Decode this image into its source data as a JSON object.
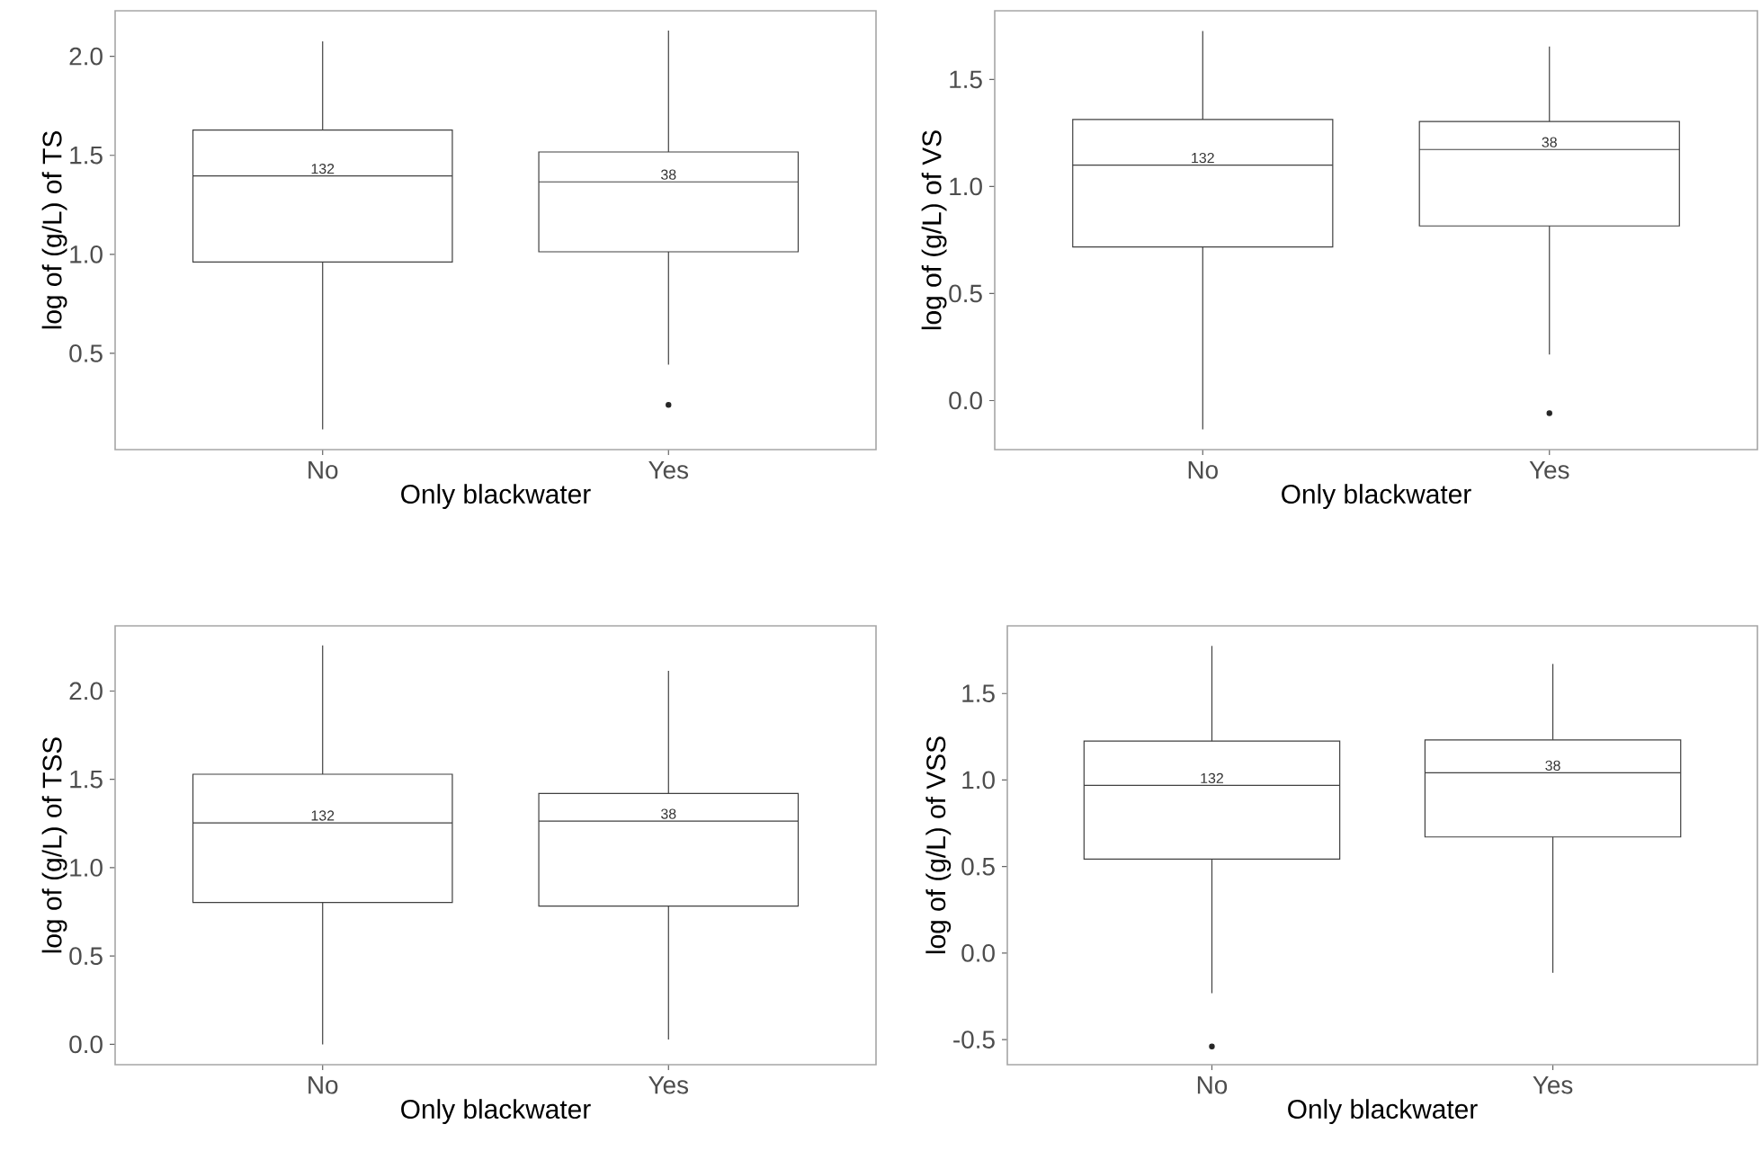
{
  "chart_data": [
    {
      "type": "box",
      "categories": [
        "No",
        "Yes"
      ],
      "xlabel": "Only blackwater",
      "ylabel": "log of (g/L) of TS",
      "ylim": [
        0.014,
        2.23
      ],
      "yticks": [
        0.5,
        {
          "value": 1,
          "label": "1.0"
        },
        1.5,
        {
          "value": 2,
          "label": "2.0"
        }
      ],
      "grid": false,
      "boxes": [
        {
          "low": 0.116,
          "q1": 0.961,
          "median": 1.396,
          "q3": 1.628,
          "high": 2.076
        },
        {
          "low": 0.443,
          "q1": 1.013,
          "median": 1.366,
          "q3": 1.517,
          "high": 2.13,
          "outliers": [
            0.24
          ]
        }
      ],
      "annotations": [
        "132",
        "38"
      ]
    },
    {
      "type": "box",
      "categories": [
        "No",
        "Yes"
      ],
      "xlabel": "Only blackwater",
      "ylabel": "log of (g/L) of VS",
      "ylim": [
        -0.229,
        1.821
      ],
      "yticks": [
        {
          "value": 0,
          "label": "0.0"
        },
        0.5,
        {
          "value": 1,
          "label": "1.0"
        },
        1.5
      ],
      "grid": false,
      "boxes": [
        {
          "low": -0.134,
          "q1": 0.718,
          "median": 1.1,
          "q3": 1.313,
          "high": 1.726
        },
        {
          "low": 0.215,
          "q1": 0.816,
          "median": 1.173,
          "q3": 1.304,
          "high": 1.654,
          "outliers": [
            -0.059
          ]
        }
      ],
      "annotations": [
        "132",
        "38"
      ]
    },
    {
      "type": "box",
      "categories": [
        "No",
        "Yes"
      ],
      "xlabel": "Only blackwater",
      "ylabel": "log of (g/L) of TSS",
      "ylim": [
        -0.115,
        2.369
      ],
      "yticks": [
        {
          "value": 0,
          "label": "0.0"
        },
        0.5,
        {
          "value": 1,
          "label": "1.0"
        },
        1.5,
        {
          "value": 2,
          "label": "2.0"
        }
      ],
      "grid": false,
      "boxes": [
        {
          "low": 0.0,
          "q1": 0.803,
          "median": 1.254,
          "q3": 1.529,
          "high": 2.258
        },
        {
          "low": 0.027,
          "q1": 0.783,
          "median": 1.264,
          "q3": 1.42,
          "high": 2.115
        }
      ],
      "annotations": [
        "132",
        "38"
      ]
    },
    {
      "type": "box",
      "categories": [
        "No",
        "Yes"
      ],
      "xlabel": "Only blackwater",
      "ylabel": "log of (g/L) of VSS",
      "ylim": [
        -0.645,
        1.891
      ],
      "yticks": [
        -0.5,
        {
          "value": 0,
          "label": "0.0"
        },
        0.5,
        {
          "value": 1,
          "label": "1.0"
        },
        1.5
      ],
      "grid": false,
      "boxes": [
        {
          "low": -0.232,
          "q1": 0.543,
          "median": 0.969,
          "q3": 1.225,
          "high": 1.775,
          "outliers": [
            -0.54
          ]
        },
        {
          "low": -0.114,
          "q1": 0.671,
          "median": 1.042,
          "q3": 1.232,
          "high": 1.671
        }
      ],
      "annotations": [
        "132",
        "38"
      ]
    }
  ]
}
